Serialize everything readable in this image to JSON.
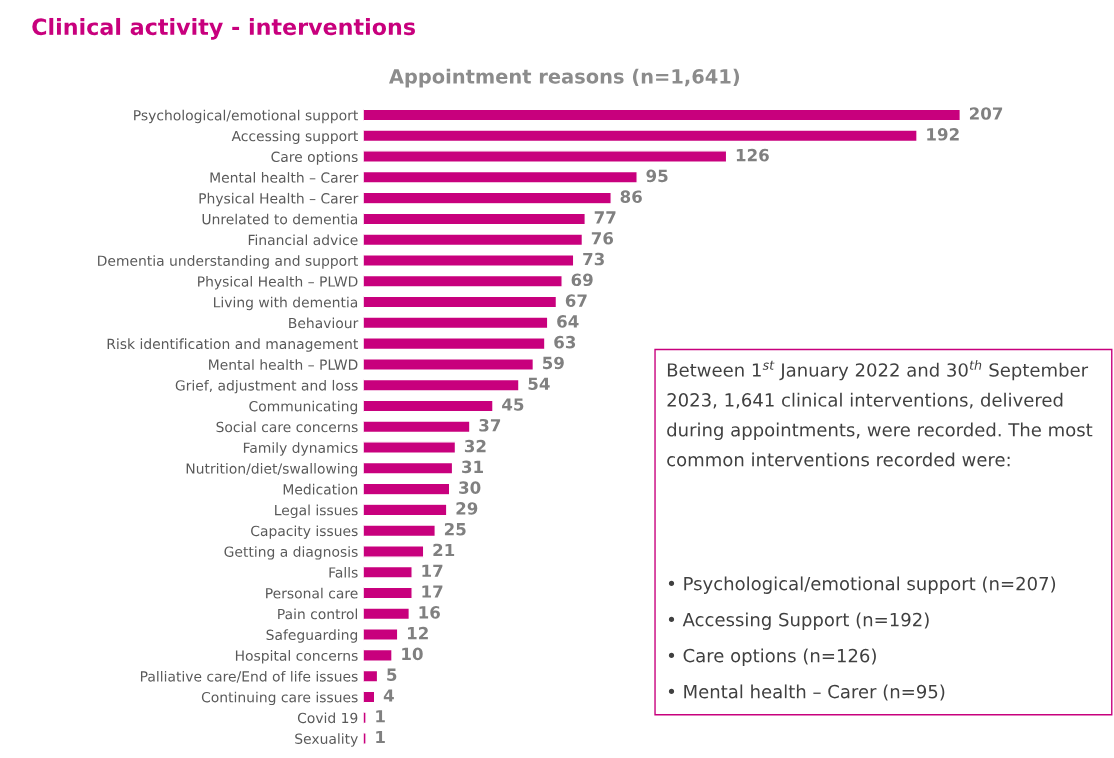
{
  "chart_data": {
    "type": "bar",
    "orientation": "horizontal",
    "title": "Clinical activity - interventions",
    "subtitle": "Appointment reasons (n=1,641)",
    "categories": [
      "Psychological/emotional support",
      "Accessing support",
      "Care options",
      "Mental health – Carer",
      "Physical Health – Carer",
      "Unrelated to dementia",
      "Financial advice",
      "Dementia understanding and support",
      "Physical Health – PLWD",
      "Living with dementia",
      "Behaviour",
      "Risk identification and management",
      "Mental health – PLWD",
      "Grief, adjustment and loss",
      "Communicating",
      "Social care concerns",
      "Family dynamics",
      "Nutrition/diet/swallowing",
      "Medication",
      "Legal issues",
      "Capacity issues",
      "Getting a diagnosis",
      "Falls",
      "Personal care",
      "Pain control",
      "Safeguarding",
      "Hospital concerns",
      "Palliative care/End of life issues",
      "Continuing care issues",
      "Covid 19",
      "Sexuality"
    ],
    "values": [
      207,
      192,
      126,
      95,
      86,
      77,
      76,
      73,
      69,
      67,
      64,
      63,
      59,
      54,
      45,
      37,
      32,
      31,
      30,
      29,
      25,
      21,
      17,
      17,
      16,
      12,
      10,
      5,
      4,
      1,
      1
    ],
    "color": "#c8007d",
    "data_labels": true,
    "tick_labels": "y",
    "grid": false,
    "legend": false,
    "annotations": [
      "Between 1$^{st}$ January 2022 and 30$^{th}$ September 2023, 1,641 clinical interventions, delivered during appointments, were recorded. The most common interventions recorded were:",
      "• Psychological/emotional support (n=207)",
      "• Accessing Support (n=192)",
      "• Care options (n=126)",
      "• Mental health – Carer (n=95)"
    ]
  }
}
